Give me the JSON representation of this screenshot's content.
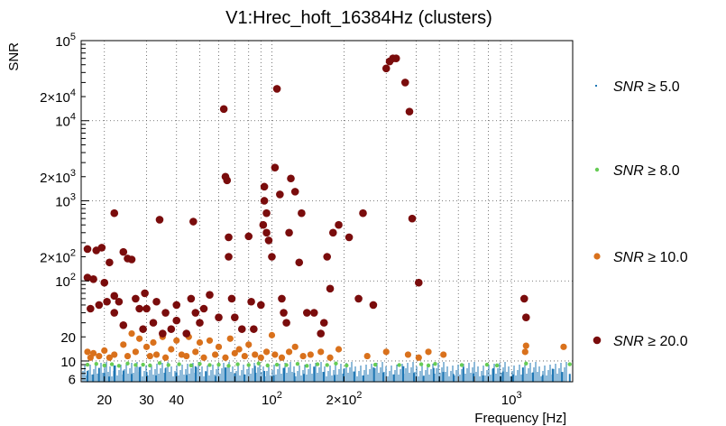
{
  "chart_data": {
    "type": "scatter",
    "title": "V1:Hrec_hoft_16384Hz (clusters)",
    "xlabel": "Frequency [Hz]",
    "ylabel": "SNR",
    "x_scale": "log",
    "y_scale": "log",
    "xlim": [
      16,
      1800
    ],
    "ylim": [
      5.5,
      100000
    ],
    "grid": true,
    "legend_position": "right",
    "x_ticks": [
      {
        "value": 20,
        "label": "20"
      },
      {
        "value": 30,
        "label": "30"
      },
      {
        "value": 40,
        "label": "40"
      },
      {
        "value": 100,
        "label": "10²"
      },
      {
        "value": 200,
        "label": "2×10²"
      },
      {
        "value": 1000,
        "label": "10³"
      }
    ],
    "y_ticks": [
      {
        "value": 6,
        "label": "6"
      },
      {
        "value": 10,
        "label": "10"
      },
      {
        "value": 20,
        "label": "20"
      },
      {
        "value": 100,
        "label": "10²"
      },
      {
        "value": 200,
        "label": "2×10²"
      },
      {
        "value": 1000,
        "label": "10³"
      },
      {
        "value": 2000,
        "label": "2×10³"
      },
      {
        "value": 10000,
        "label": "10⁴"
      },
      {
        "value": 20000,
        "label": "2×10⁴"
      },
      {
        "value": 100000,
        "label": "10⁵"
      }
    ],
    "series": [
      {
        "name": "SNR ≥ 5.0",
        "legend_prefix": "SNR",
        "legend_suffix": "≥ 5.0",
        "color": "#1f77b4",
        "marker": "dot",
        "note_density": "dense band",
        "points": [
          [
            17,
            7.5
          ],
          [
            18,
            6.8
          ],
          [
            19,
            8.2
          ],
          [
            20,
            7.1
          ],
          [
            21,
            6.4
          ],
          [
            22,
            8.8
          ],
          [
            24,
            7.6
          ],
          [
            26,
            6.9
          ],
          [
            28,
            8.4
          ],
          [
            30,
            7.3
          ],
          [
            33,
            6.6
          ],
          [
            36,
            8.1
          ],
          [
            40,
            7.2
          ],
          [
            44,
            6.7
          ],
          [
            48,
            8.6
          ],
          [
            53,
            7.4
          ],
          [
            58,
            6.5
          ],
          [
            64,
            8.3
          ],
          [
            70,
            7.0
          ],
          [
            77,
            6.8
          ],
          [
            85,
            8.7
          ],
          [
            93,
            7.5
          ],
          [
            102,
            6.6
          ],
          [
            112,
            8.2
          ],
          [
            124,
            7.1
          ],
          [
            136,
            6.9
          ],
          [
            150,
            8.5
          ],
          [
            165,
            7.3
          ],
          [
            182,
            6.7
          ],
          [
            200,
            8.0
          ],
          [
            220,
            7.4
          ],
          [
            242,
            6.6
          ],
          [
            266,
            8.3
          ],
          [
            293,
            7.2
          ],
          [
            322,
            6.8
          ],
          [
            354,
            8.6
          ],
          [
            390,
            7.1
          ],
          [
            430,
            6.5
          ],
          [
            473,
            8.2
          ],
          [
            520,
            7.3
          ],
          [
            572,
            6.9
          ],
          [
            630,
            8.4
          ],
          [
            693,
            7.0
          ],
          [
            762,
            6.6
          ],
          [
            838,
            8.1
          ],
          [
            922,
            7.4
          ],
          [
            1014,
            6.8
          ],
          [
            1116,
            8.3
          ],
          [
            1228,
            7.2
          ],
          [
            1350,
            6.7
          ],
          [
            1485,
            8.0
          ],
          [
            1630,
            7.3
          ],
          [
            1750,
            6.9
          ]
        ]
      },
      {
        "name": "SNR ≥ 8.0",
        "legend_prefix": "SNR",
        "legend_suffix": "≥ 8.0",
        "color": "#66cc55",
        "marker": "small",
        "points": [
          [
            17,
            9.0
          ],
          [
            18.5,
            9.2
          ],
          [
            20,
            8.8
          ],
          [
            21.5,
            9.1
          ],
          [
            23,
            8.7
          ],
          [
            25,
            9.3
          ],
          [
            27,
            8.9
          ],
          [
            29,
            9.0
          ],
          [
            31,
            8.8
          ],
          [
            34,
            9.4
          ],
          [
            37,
            8.9
          ],
          [
            41,
            9.1
          ],
          [
            46,
            8.8
          ],
          [
            50,
            9.2
          ],
          [
            55,
            8.9
          ],
          [
            60,
            9.0
          ],
          [
            66,
            8.7
          ],
          [
            72,
            9.1
          ],
          [
            80,
            8.9
          ],
          [
            88,
            9.3
          ],
          [
            96,
            8.8
          ],
          [
            105,
            9.0
          ],
          [
            115,
            8.9
          ],
          [
            128,
            9.2
          ],
          [
            140,
            8.7
          ],
          [
            155,
            9.1
          ],
          [
            170,
            8.9
          ],
          [
            185,
            9.3
          ],
          [
            205,
            8.8
          ],
          [
            270,
            9.0
          ],
          [
            340,
            8.9
          ],
          [
            420,
            9.1
          ],
          [
            450,
            8.8
          ],
          [
            480,
            9.2
          ],
          [
            620,
            8.9
          ],
          [
            790,
            9.0
          ],
          [
            870,
            8.8
          ],
          [
            1150,
            9.3
          ],
          [
            1750,
            9.1
          ]
        ]
      },
      {
        "name": "SNR ≥ 10.0",
        "legend_prefix": "SNR",
        "legend_suffix": "≥ 10.0",
        "color": "#d9711c",
        "marker": "medium",
        "points": [
          [
            17,
            13
          ],
          [
            17.5,
            11
          ],
          [
            18,
            12.5
          ],
          [
            19,
            11.5
          ],
          [
            20,
            13.5
          ],
          [
            21,
            11
          ],
          [
            22,
            12
          ],
          [
            24,
            16
          ],
          [
            25,
            11.5
          ],
          [
            26,
            22
          ],
          [
            27,
            13
          ],
          [
            28,
            19
          ],
          [
            30,
            15
          ],
          [
            31,
            11.5
          ],
          [
            32,
            17
          ],
          [
            33,
            12
          ],
          [
            35,
            20
          ],
          [
            36,
            11
          ],
          [
            38,
            14
          ],
          [
            40,
            18
          ],
          [
            42,
            12
          ],
          [
            44,
            11.5
          ],
          [
            45,
            20
          ],
          [
            48,
            13
          ],
          [
            50,
            17
          ],
          [
            52,
            11
          ],
          [
            55,
            18
          ],
          [
            58,
            12
          ],
          [
            60,
            15
          ],
          [
            64,
            11
          ],
          [
            67,
            19
          ],
          [
            70,
            12.5
          ],
          [
            73,
            14
          ],
          [
            77,
            11.5
          ],
          [
            80,
            16
          ],
          [
            85,
            12
          ],
          [
            90,
            11
          ],
          [
            95,
            13
          ],
          [
            100,
            21
          ],
          [
            103,
            12
          ],
          [
            110,
            11
          ],
          [
            118,
            13
          ],
          [
            125,
            15
          ],
          [
            135,
            11.5
          ],
          [
            145,
            12
          ],
          [
            160,
            13
          ],
          [
            175,
            11
          ],
          [
            190,
            14
          ],
          [
            250,
            11.5
          ],
          [
            300,
            13
          ],
          [
            370,
            12
          ],
          [
            410,
            11
          ],
          [
            450,
            13
          ],
          [
            520,
            12
          ],
          [
            1140,
            13
          ],
          [
            1150,
            15.5
          ],
          [
            1650,
            15
          ]
        ]
      },
      {
        "name": "SNR ≥ 20.0",
        "legend_prefix": "SNR",
        "legend_suffix": "≥ 20.0",
        "color": "#7a0c0c",
        "marker": "large",
        "points": [
          [
            17,
            110
          ],
          [
            17,
            250
          ],
          [
            17.5,
            45
          ],
          [
            18,
            105
          ],
          [
            18.5,
            240
          ],
          [
            19,
            50
          ],
          [
            19.5,
            260
          ],
          [
            20,
            95
          ],
          [
            20.5,
            55
          ],
          [
            21,
            170
          ],
          [
            22,
            700
          ],
          [
            22,
            65
          ],
          [
            22,
            40
          ],
          [
            23,
            55
          ],
          [
            24,
            230
          ],
          [
            24,
            28
          ],
          [
            25,
            190
          ],
          [
            26,
            185
          ],
          [
            27,
            60
          ],
          [
            28,
            45
          ],
          [
            29,
            25
          ],
          [
            29.5,
            70
          ],
          [
            30,
            45
          ],
          [
            32,
            30
          ],
          [
            33,
            55
          ],
          [
            34,
            580
          ],
          [
            35,
            22
          ],
          [
            36,
            40
          ],
          [
            38,
            25
          ],
          [
            40,
            50
          ],
          [
            40,
            32
          ],
          [
            44,
            22
          ],
          [
            46,
            60
          ],
          [
            47,
            550
          ],
          [
            48,
            40
          ],
          [
            50,
            30
          ],
          [
            52,
            45
          ],
          [
            55,
            67
          ],
          [
            60,
            35
          ],
          [
            63,
            14000
          ],
          [
            64,
            2000
          ],
          [
            65,
            1800
          ],
          [
            66,
            350
          ],
          [
            66,
            200
          ],
          [
            68,
            60
          ],
          [
            70,
            35
          ],
          [
            75,
            25
          ],
          [
            80,
            360
          ],
          [
            82,
            55
          ],
          [
            84,
            25
          ],
          [
            90,
            50
          ],
          [
            92,
            500
          ],
          [
            93,
            1000
          ],
          [
            93,
            1500
          ],
          [
            95,
            700
          ],
          [
            95,
            400
          ],
          [
            97,
            320
          ],
          [
            100,
            200
          ],
          [
            103,
            2600
          ],
          [
            105,
            25000
          ],
          [
            108,
            1200
          ],
          [
            110,
            60
          ],
          [
            112,
            40
          ],
          [
            115,
            30
          ],
          [
            118,
            400
          ],
          [
            120,
            1900
          ],
          [
            125,
            1300
          ],
          [
            130,
            170
          ],
          [
            133,
            700
          ],
          [
            140,
            40
          ],
          [
            150,
            40
          ],
          [
            160,
            22
          ],
          [
            165,
            30
          ],
          [
            170,
            200
          ],
          [
            175,
            80
          ],
          [
            180,
            400
          ],
          [
            190,
            500
          ],
          [
            210,
            350
          ],
          [
            230,
            60
          ],
          [
            240,
            700
          ],
          [
            265,
            50
          ],
          [
            300,
            45000
          ],
          [
            310,
            55000
          ],
          [
            320,
            60000
          ],
          [
            330,
            60000
          ],
          [
            360,
            30000
          ],
          [
            375,
            13000
          ],
          [
            385,
            600
          ],
          [
            410,
            95
          ],
          [
            1130,
            60
          ],
          [
            1150,
            35
          ]
        ]
      }
    ]
  }
}
